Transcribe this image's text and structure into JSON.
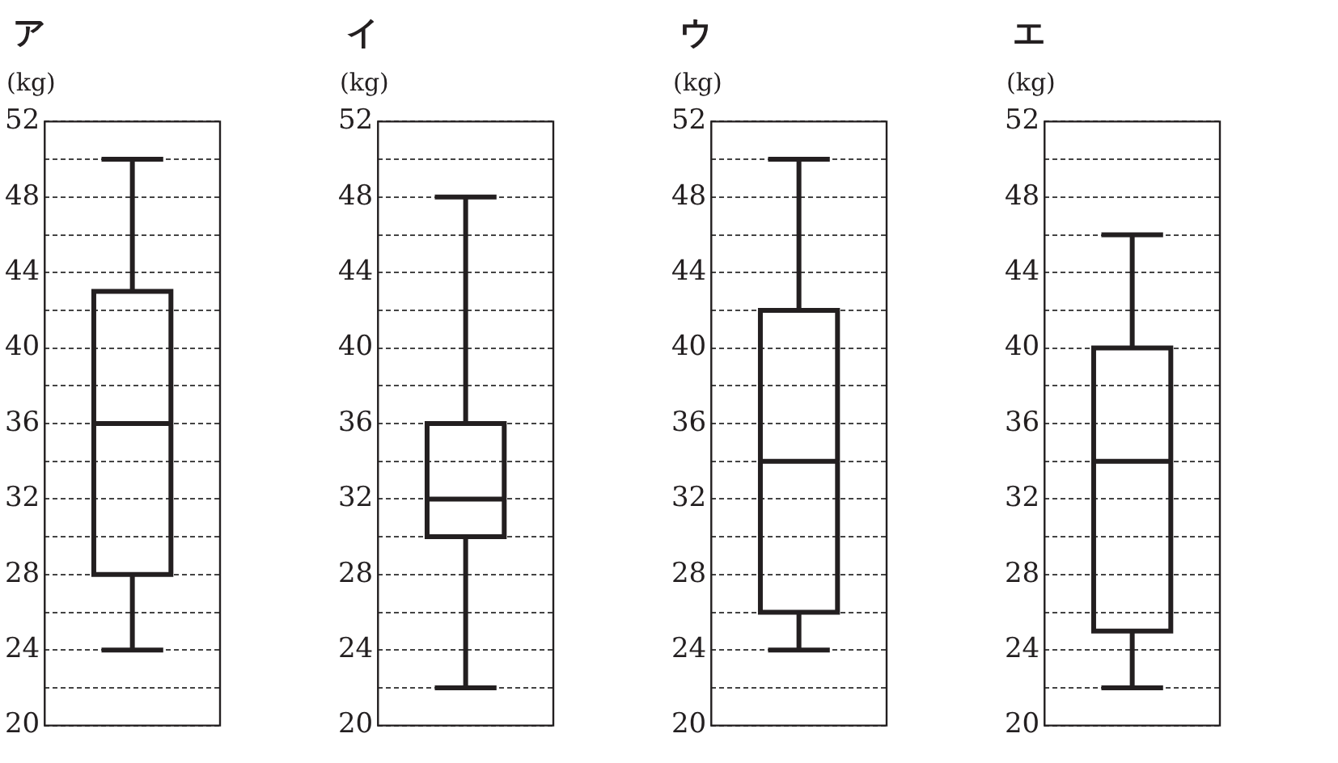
{
  "chart_data": [
    {
      "type": "box",
      "title": "ア",
      "ylabel": "(kg)",
      "categories": [
        null
      ],
      "color": "#231f20",
      "boxes": [
        {
          "low": 24,
          "q1": 28,
          "median": 36,
          "q3": 43,
          "high": 50
        }
      ],
      "ylim": [
        20,
        52
      ],
      "yticks": [
        20,
        {
          "value": 22,
          "label": null
        },
        24,
        {
          "value": 26,
          "label": null
        },
        28,
        {
          "value": 30,
          "label": null
        },
        32,
        {
          "value": 34,
          "label": null
        },
        36,
        {
          "value": 38,
          "label": null
        },
        40,
        {
          "value": 42,
          "label": null
        },
        44,
        {
          "value": 46,
          "label": null
        },
        48,
        {
          "value": 50,
          "label": null
        },
        52
      ],
      "grid": "y"
    },
    {
      "type": "box",
      "title": "イ",
      "ylabel": "(kg)",
      "categories": [
        null
      ],
      "color": "#231f20",
      "boxes": [
        {
          "low": 22,
          "q1": 30,
          "median": 32,
          "q3": 36,
          "high": 48
        }
      ],
      "ylim": [
        20,
        52
      ],
      "yticks": [
        20,
        {
          "value": 22,
          "label": null
        },
        24,
        {
          "value": 26,
          "label": null
        },
        28,
        {
          "value": 30,
          "label": null
        },
        32,
        {
          "value": 34,
          "label": null
        },
        36,
        {
          "value": 38,
          "label": null
        },
        40,
        {
          "value": 42,
          "label": null
        },
        44,
        {
          "value": 46,
          "label": null
        },
        48,
        {
          "value": 50,
          "label": null
        },
        52
      ],
      "grid": "y"
    },
    {
      "type": "box",
      "title": "ウ",
      "ylabel": "(kg)",
      "categories": [
        null
      ],
      "color": "#231f20",
      "boxes": [
        {
          "low": 24,
          "q1": 26,
          "median": 34,
          "q3": 42,
          "high": 50
        }
      ],
      "ylim": [
        20,
        52
      ],
      "yticks": [
        20,
        {
          "value": 22,
          "label": null
        },
        24,
        {
          "value": 26,
          "label": null
        },
        28,
        {
          "value": 30,
          "label": null
        },
        32,
        {
          "value": 34,
          "label": null
        },
        36,
        {
          "value": 38,
          "label": null
        },
        40,
        {
          "value": 42,
          "label": null
        },
        44,
        {
          "value": 46,
          "label": null
        },
        48,
        {
          "value": 50,
          "label": null
        },
        52
      ],
      "grid": "y"
    },
    {
      "type": "box",
      "title": "エ",
      "ylabel": "(kg)",
      "categories": [
        null
      ],
      "color": "#231f20",
      "boxes": [
        {
          "low": 22,
          "q1": 25,
          "median": 34,
          "q3": 40,
          "high": 46
        }
      ],
      "ylim": [
        20,
        52
      ],
      "yticks": [
        20,
        {
          "value": 22,
          "label": null
        },
        24,
        {
          "value": 26,
          "label": null
        },
        28,
        {
          "value": 30,
          "label": null
        },
        32,
        {
          "value": 34,
          "label": null
        },
        36,
        {
          "value": 38,
          "label": null
        },
        40,
        {
          "value": 42,
          "label": null
        },
        44,
        {
          "value": 46,
          "label": null
        },
        48,
        {
          "value": 50,
          "label": null
        },
        52
      ],
      "grid": "y"
    }
  ]
}
